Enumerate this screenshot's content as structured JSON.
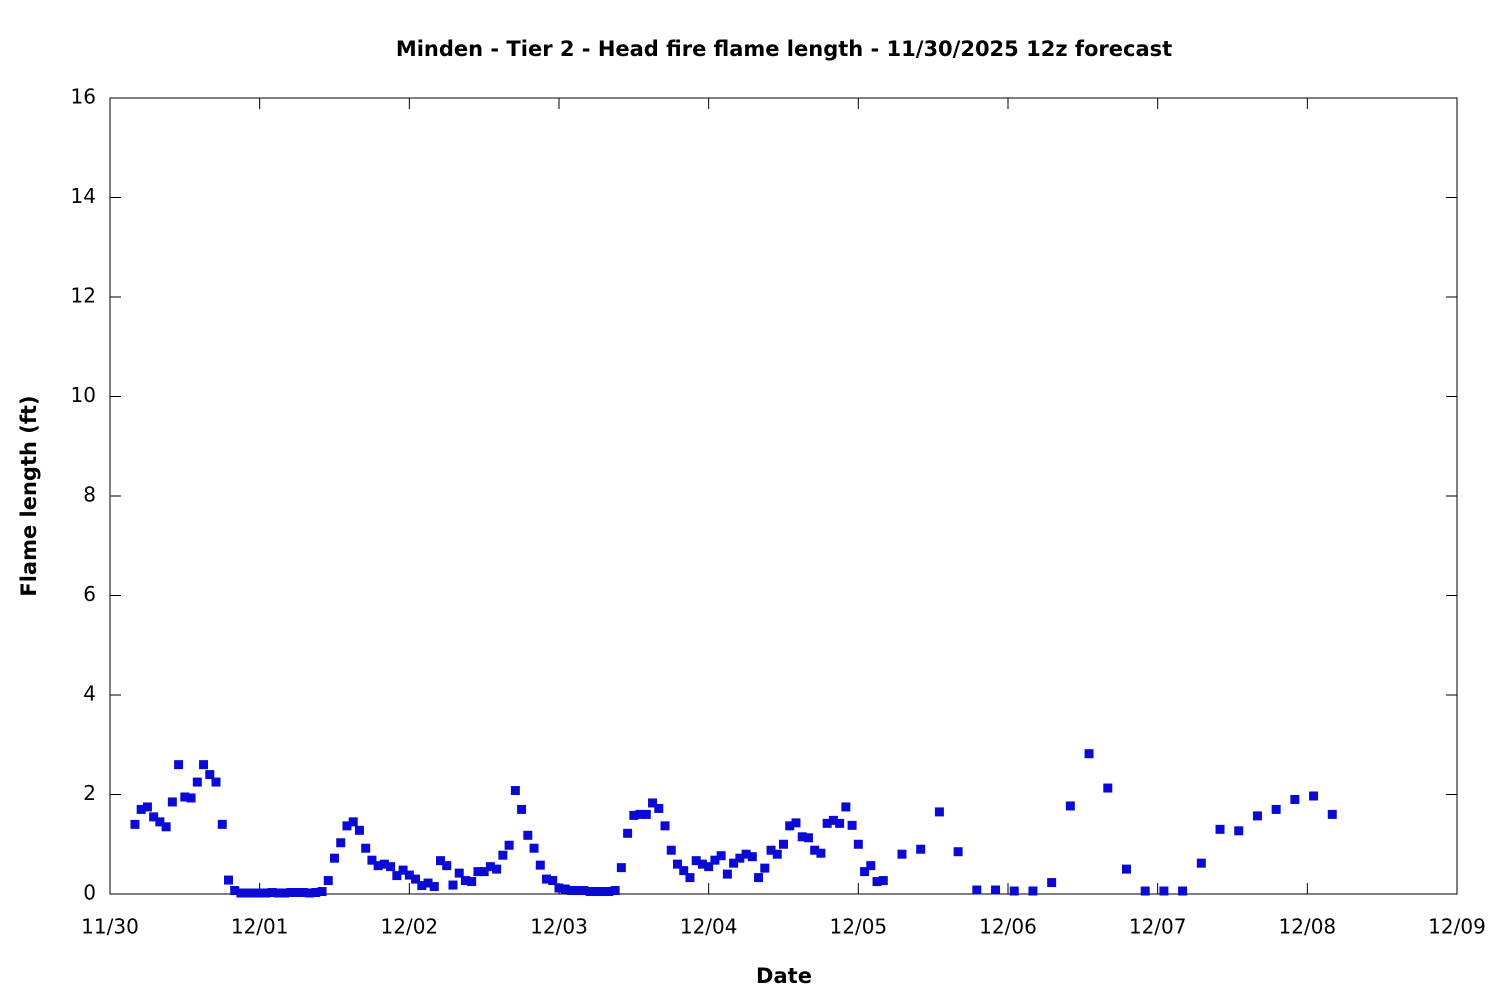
{
  "chart_data": {
    "type": "scatter",
    "title": "Minden - Tier 2 - Head fire flame length - 11/30/2025 12z forecast",
    "x_label": "Date",
    "y_label": "Flame length (ft)",
    "x": [
      4,
      5,
      6,
      7,
      8,
      9,
      10,
      11,
      12,
      13,
      14,
      15,
      16,
      17,
      18,
      19,
      20,
      21,
      22,
      23,
      24,
      25,
      26,
      27,
      28,
      29,
      30,
      31,
      32,
      33,
      34,
      35,
      36,
      37,
      38,
      39,
      40,
      41,
      42,
      43,
      44,
      45,
      46,
      47,
      48,
      49,
      50,
      51,
      52,
      53,
      54,
      55,
      56,
      57,
      58,
      59,
      60,
      61,
      62,
      63,
      64,
      65,
      66,
      67,
      68,
      69,
      70,
      71,
      72,
      73,
      74,
      75,
      76,
      77,
      78,
      79,
      80,
      81,
      82,
      83,
      84,
      85,
      86,
      87,
      88,
      89,
      90,
      91,
      92,
      93,
      94,
      95,
      96,
      97,
      98,
      99,
      100,
      101,
      102,
      103,
      104,
      105,
      106,
      107,
      108,
      109,
      110,
      111,
      112,
      113,
      114,
      115,
      116,
      117,
      118,
      119,
      120,
      121,
      122,
      123,
      124,
      127,
      130,
      133,
      136,
      139,
      142,
      145,
      148,
      151,
      154,
      157,
      160,
      163,
      166,
      169,
      172,
      175,
      178,
      181,
      184,
      187,
      190,
      193,
      196
    ],
    "series": [
      {
        "name": "Flame length",
        "color": "#0a0ad2",
        "values": [
          1.4,
          1.7,
          1.75,
          1.55,
          1.45,
          1.35,
          1.85,
          2.6,
          1.95,
          1.93,
          2.25,
          2.6,
          2.4,
          2.25,
          1.4,
          0.28,
          0.07,
          0.02,
          0.02,
          0.02,
          0.02,
          0.02,
          0.03,
          0.02,
          0.02,
          0.03,
          0.03,
          0.03,
          0.02,
          0.03,
          0.05,
          0.27,
          0.72,
          1.03,
          1.37,
          1.45,
          1.28,
          0.92,
          0.68,
          0.57,
          0.6,
          0.55,
          0.37,
          0.48,
          0.38,
          0.3,
          0.17,
          0.22,
          0.15,
          0.67,
          0.57,
          0.18,
          0.42,
          0.27,
          0.25,
          0.45,
          0.45,
          0.55,
          0.5,
          0.78,
          0.98,
          2.08,
          1.7,
          1.18,
          0.92,
          0.58,
          0.3,
          0.27,
          0.12,
          0.1,
          0.07,
          0.07,
          0.07,
          0.05,
          0.05,
          0.05,
          0.05,
          0.07,
          0.53,
          1.22,
          1.58,
          1.6,
          1.6,
          1.83,
          1.72,
          1.37,
          0.88,
          0.6,
          0.47,
          0.33,
          0.67,
          0.6,
          0.55,
          0.68,
          0.77,
          0.4,
          0.62,
          0.72,
          0.8,
          0.75,
          0.33,
          0.52,
          0.88,
          0.8,
          1.0,
          1.37,
          1.43,
          1.15,
          1.13,
          0.88,
          0.82,
          1.42,
          1.48,
          1.42,
          1.75,
          1.38,
          1.0,
          0.45,
          0.57,
          0.25,
          0.27,
          0.8,
          0.9,
          1.65,
          0.85,
          0.08,
          0.08,
          0.06,
          0.06,
          0.23,
          1.77,
          2.82,
          2.13,
          0.5,
          0.06,
          0.06,
          0.06,
          0.62,
          1.3,
          1.27,
          1.57,
          1.7,
          1.9,
          1.97,
          1.6
        ]
      }
    ],
    "xlim": [
      0,
      216
    ],
    "xticks": [
      {
        "value": 0,
        "label": "11/30"
      },
      {
        "value": 24,
        "label": "12/01"
      },
      {
        "value": 48,
        "label": "12/02"
      },
      {
        "value": 72,
        "label": "12/03"
      },
      {
        "value": 96,
        "label": "12/04"
      },
      {
        "value": 120,
        "label": "12/05"
      },
      {
        "value": 144,
        "label": "12/06"
      },
      {
        "value": 168,
        "label": "12/07"
      },
      {
        "value": 192,
        "label": "12/08"
      },
      {
        "value": 216,
        "label": "12/09"
      }
    ],
    "ylim": [
      0,
      16
    ],
    "yticks": [
      0,
      2,
      4,
      6,
      8,
      10,
      12,
      14,
      16
    ],
    "grid": false
  }
}
